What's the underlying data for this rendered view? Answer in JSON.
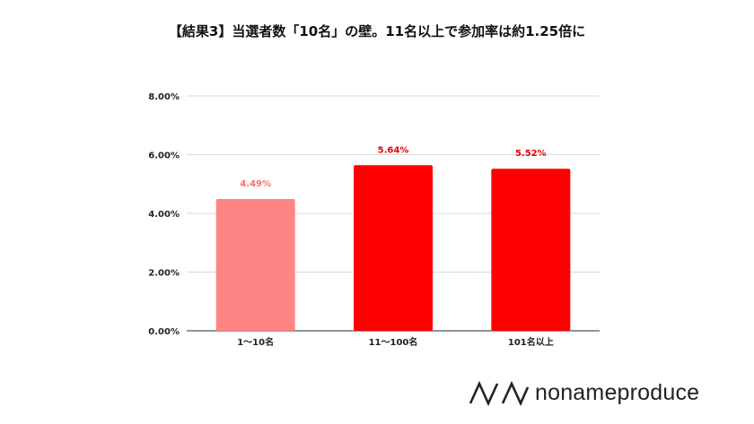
{
  "title": "【結果3】当選者数「10名」の壁。11名以上で参加率は約1.25倍に",
  "brand": {
    "name": "nonameproduce",
    "mark_icon": "wave-icon"
  },
  "colors": {
    "bar_light": "#ff8585",
    "bar_main": "#ff0000",
    "label_light": "#ff6b6b",
    "label_main": "#e60000"
  },
  "chart_data": {
    "type": "bar",
    "categories": [
      "1〜10名",
      "11〜100名",
      "101名以上"
    ],
    "values": [
      4.49,
      5.64,
      5.52
    ],
    "value_labels": [
      "4.49%",
      "5.64%",
      "5.52%"
    ],
    "ylim": [
      0,
      8
    ],
    "yticks": [
      "0.00%",
      "2.00%",
      "4.00%",
      "6.00%",
      "8.00%"
    ],
    "grid": true,
    "xlabel": "",
    "ylabel": ""
  }
}
